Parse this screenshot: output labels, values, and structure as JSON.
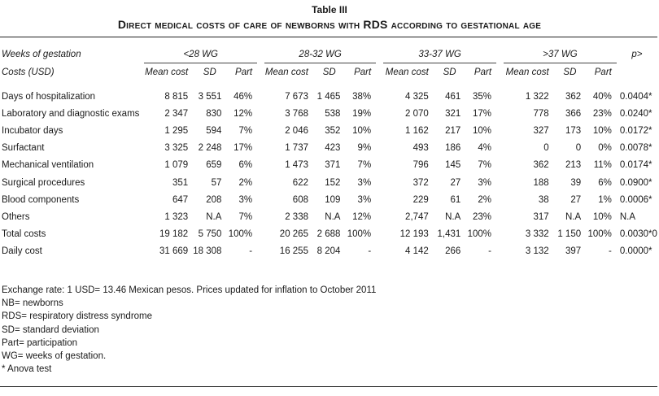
{
  "table": {
    "label": "Table III",
    "title": "Direct medical costs of care of newborns with RDS according to gestational age",
    "header": {
      "weeks_label": "Weeks of gestation",
      "costs_label": "Costs (USD)",
      "groups": [
        "<28 WG",
        "28-32 WG",
        "33-37 WG",
        ">37 WG"
      ],
      "sub_mean": "Mean cost",
      "sub_sd": "SD",
      "sub_part": "Part",
      "p_label": "p>"
    },
    "rows": [
      {
        "cat": "Days of hospitalization",
        "v": [
          "8 815",
          "3 551",
          "46%",
          "7 673",
          "1 465",
          "38%",
          "4 325",
          "461",
          "35%",
          "1 322",
          "362",
          "40%"
        ],
        "p": "0.0404*"
      },
      {
        "cat": "Laboratory and diagnostic exams",
        "v": [
          "2 347",
          "830",
          "12%",
          "3 768",
          "538",
          "19%",
          "2 070",
          "321",
          "17%",
          "778",
          "366",
          "23%"
        ],
        "p": "0.0240*"
      },
      {
        "cat": "Incubator days",
        "v": [
          "1 295",
          "594",
          "7%",
          "2 046",
          "352",
          "10%",
          "1 162",
          "217",
          "10%",
          "327",
          "173",
          "10%"
        ],
        "p": "0.0172*"
      },
      {
        "cat": "Surfactant",
        "v": [
          "3 325",
          "2 248",
          "17%",
          "1 737",
          "423",
          "9%",
          "493",
          "186",
          "4%",
          "0",
          "0",
          "0%"
        ],
        "p": "0.0078*"
      },
      {
        "cat": "Mechanical ventilation",
        "v": [
          "1 079",
          "659",
          "6%",
          "1 473",
          "371",
          "7%",
          "796",
          "145",
          "7%",
          "362",
          "213",
          "11%"
        ],
        "p": "0.0174*"
      },
      {
        "cat": "Surgical procedures",
        "v": [
          "351",
          "57",
          "2%",
          "622",
          "152",
          "3%",
          "372",
          "27",
          "3%",
          "188",
          "39",
          "6%"
        ],
        "p": "0.0900*"
      },
      {
        "cat": "Blood components",
        "v": [
          "647",
          "208",
          "3%",
          "608",
          "109",
          "3%",
          "229",
          "61",
          "2%",
          "38",
          "27",
          "1%"
        ],
        "p": "0.0006*"
      },
      {
        "cat": "Others",
        "v": [
          "1 323",
          "N.A",
          "7%",
          "2 338",
          "N.A",
          "12%",
          "2,747",
          "N.A",
          "23%",
          "317",
          "N.A",
          "10%"
        ],
        "p": "N.A"
      },
      {
        "cat": "Total costs",
        "v": [
          "19 182",
          "5 750",
          "100%",
          "20 265",
          "2 688",
          "100%",
          "12 193",
          "1,431",
          "100%",
          "3 332",
          "1 150",
          "100%"
        ],
        "p": "0.0030*0"
      },
      {
        "cat": "Daily cost",
        "v": [
          "31 669",
          "18 308",
          "-",
          "16 255",
          "8 204",
          "-",
          "4 142",
          "266",
          "-",
          "3 132",
          "397",
          "-"
        ],
        "p": "0.0000*"
      }
    ]
  },
  "notes": [
    "Exchange rate: 1 USD= 13.46 Mexican pesos. Prices updated for inflation to October 2011",
    "NB= newborns",
    "RDS= respiratory distress syndrome",
    "SD= standard deviation",
    "Part= participation",
    "WG= weeks of gestation.",
    "* Anova test"
  ]
}
